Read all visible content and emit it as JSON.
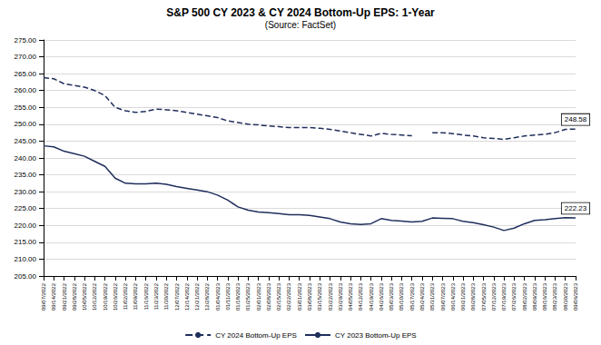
{
  "chart_data": {
    "type": "line",
    "title": "S&P 500 CY 2023 & CY 2024 Bottom-Up EPS: 1-Year",
    "subtitle": "(Source: FactSet)",
    "categories": [
      "09/07/2022",
      "09/14/2022",
      "09/21/2022",
      "09/28/2022",
      "10/05/2022",
      "10/12/2022",
      "10/19/2022",
      "10/26/2022",
      "11/02/2022",
      "11/09/2022",
      "11/16/2022",
      "11/23/2022",
      "11/30/2022",
      "12/07/2022",
      "12/14/2022",
      "12/21/2022",
      "12/28/2022",
      "01/04/2023",
      "01/11/2023",
      "01/18/2023",
      "01/25/2023",
      "02/01/2023",
      "02/08/2023",
      "02/15/2023",
      "02/22/2023",
      "03/01/2023",
      "03/08/2023",
      "03/15/2023",
      "03/22/2023",
      "03/29/2023",
      "04/05/2023",
      "04/12/2023",
      "04/19/2023",
      "04/26/2023",
      "05/03/2023",
      "05/10/2023",
      "05/17/2023",
      "05/24/2023",
      "05/31/2023",
      "06/07/2023",
      "06/14/2023",
      "06/21/2023",
      "06/28/2023",
      "07/05/2023",
      "07/12/2023",
      "07/19/2023",
      "07/26/2023",
      "08/02/2023",
      "08/09/2023",
      "08/16/2023",
      "08/23/2023",
      "08/30/2023",
      "09/06/2023"
    ],
    "series": [
      {
        "name": "CY 2024 Bottom-Up EPS",
        "color": "#1f2f5c",
        "line_style": "dashed",
        "values": [
          263.8,
          263.5,
          262,
          261.5,
          261,
          260,
          258.5,
          255,
          254,
          253.5,
          253.8,
          254.5,
          254.3,
          254,
          253.5,
          253,
          252.5,
          252,
          251,
          250.5,
          250,
          249.8,
          249.5,
          249.3,
          249,
          249,
          249,
          248.8,
          248.5,
          248,
          247.5,
          247,
          246.5,
          247.3,
          247,
          246.8,
          246.6,
          null,
          247.5,
          247.5,
          247.2,
          246.8,
          246.5,
          246,
          245.8,
          245.5,
          246,
          246.5,
          246.8,
          247,
          247.5,
          248.5,
          248.58
        ]
      },
      {
        "name": "CY 2023 Bottom-Up EPS",
        "color": "#1f2f5c",
        "line_style": "solid",
        "values": [
          243.6,
          243.3,
          242,
          241.3,
          240.5,
          239,
          237.5,
          234,
          232.5,
          232.3,
          232.3,
          232.5,
          232.2,
          231.5,
          231,
          230.5,
          230,
          229,
          227.5,
          225.5,
          224.5,
          224,
          223.8,
          223.5,
          223.2,
          223.2,
          223,
          222.5,
          222,
          221,
          220.5,
          220.3,
          220.5,
          222,
          221.5,
          221.3,
          221,
          221.2,
          222.2,
          222.1,
          222,
          221.2,
          220.8,
          220.2,
          219.5,
          218.5,
          219.2,
          220.5,
          221.5,
          221.7,
          222,
          222.3,
          222.23
        ]
      }
    ],
    "annotations": [
      {
        "x": "09/06/2023",
        "y": 248.58,
        "text": "248.58"
      },
      {
        "x": "09/06/2023",
        "y": 222.23,
        "text": "222.23"
      }
    ],
    "ylim": [
      205,
      275
    ],
    "yticks": [
      {
        "value": 205,
        "label": "205.00"
      },
      {
        "value": 210,
        "label": "210.00"
      },
      {
        "value": 215,
        "label": "215.00"
      },
      {
        "value": 220,
        "label": "220.00"
      },
      {
        "value": 225,
        "label": "225.00"
      },
      {
        "value": 230,
        "label": "230.00"
      },
      {
        "value": 235,
        "label": "235.00"
      },
      {
        "value": 240,
        "label": "240.00"
      },
      {
        "value": 245,
        "label": "245.00"
      },
      {
        "value": 250,
        "label": "250.00"
      },
      {
        "value": 255,
        "label": "255.00"
      },
      {
        "value": 260,
        "label": "260.00"
      },
      {
        "value": 265,
        "label": "265.00"
      },
      {
        "value": 270,
        "label": "270.00"
      },
      {
        "value": 275,
        "label": "275.00"
      }
    ],
    "grid": true,
    "legend": "bottom"
  }
}
